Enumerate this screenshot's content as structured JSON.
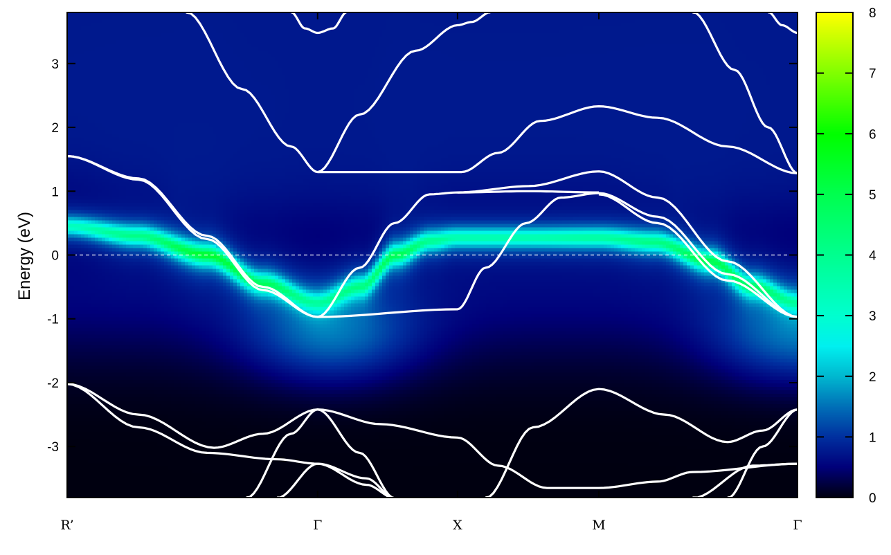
{
  "chart_data": {
    "type": "heatmap",
    "title": "",
    "xlabel": "",
    "ylabel": "Energy (eV)",
    "ylim": [
      -3.8,
      3.8
    ],
    "xlim": [
      0,
      5.22
    ],
    "yticks": [
      -3,
      -2,
      -1,
      0,
      1,
      2,
      3
    ],
    "xticks": [
      {
        "label": "R’",
        "k": 0
      },
      {
        "label": "Γ",
        "k": 1.79
      },
      {
        "label": "X",
        "k": 2.79
      },
      {
        "label": "M",
        "k": 3.8
      },
      {
        "label": "Γ",
        "k": 5.22
      }
    ],
    "fermi_level": 0,
    "colorbar": {
      "range": [
        0,
        8
      ],
      "ticks": [
        0,
        1,
        2,
        3,
        4,
        5,
        6,
        7,
        8
      ],
      "colormap": [
        [
          0,
          "#000010"
        ],
        [
          0.5,
          "#00007a"
        ],
        [
          1,
          "#0030a0"
        ],
        [
          1.5,
          "#0070b8"
        ],
        [
          2,
          "#00b8d0"
        ],
        [
          2.5,
          "#00f0f0"
        ],
        [
          3,
          "#00ffd0"
        ],
        [
          4,
          "#00ff90"
        ],
        [
          5,
          "#00ff50"
        ],
        [
          6,
          "#00ff00"
        ],
        [
          7,
          "#80ff00"
        ],
        [
          8,
          "#ffff00"
        ]
      ]
    },
    "spectral_peak": {
      "k": [
        0,
        0.5,
        1.0,
        1.4,
        1.79,
        2.1,
        2.35,
        2.6,
        2.79,
        3.3,
        3.8,
        4.2,
        4.6,
        4.9,
        5.22
      ],
      "E": [
        0.45,
        0.3,
        0.0,
        -0.45,
        -0.75,
        -0.5,
        0.0,
        0.22,
        0.27,
        0.27,
        0.27,
        0.2,
        -0.1,
        -0.5,
        -0.75
      ],
      "intensity": [
        3.0,
        3.8,
        5.0,
        4.2,
        2.8,
        3.5,
        4.5,
        3.6,
        3.2,
        3.2,
        3.4,
        3.8,
        4.6,
        4.0,
        2.8
      ]
    },
    "bands": [
      {
        "k": [
          0.85,
          1.25,
          1.6,
          1.79,
          2.82,
          3.08,
          3.38,
          3.8,
          4.22,
          4.72,
          5.22
        ],
        "E": [
          3.81,
          2.6,
          1.7,
          1.3,
          1.3,
          1.6,
          2.1,
          2.33,
          2.15,
          1.7,
          1.28
        ]
      },
      {
        "k": [
          1.79,
          2.09,
          2.49,
          2.79,
          2.89,
          3.03
        ],
        "E": [
          1.3,
          2.2,
          3.2,
          3.6,
          3.65,
          3.81
        ]
      },
      {
        "k": [
          1.6,
          1.7,
          1.79,
          1.9,
          2.0
        ],
        "E": [
          3.81,
          3.55,
          3.48,
          3.55,
          3.81
        ]
      },
      {
        "k": [
          4.47,
          4.77,
          5.01,
          5.22
        ],
        "E": [
          3.81,
          2.9,
          2.0,
          1.28
        ]
      },
      {
        "k": [
          5.01,
          5.11,
          5.22
        ],
        "E": [
          3.81,
          3.6,
          3.48
        ]
      },
      {
        "k": [
          0,
          0.51,
          1.0,
          1.4,
          1.79,
          2.79,
          2.99,
          3.28,
          3.53,
          3.8
        ],
        "E": [
          1.55,
          1.2,
          0.3,
          -0.5,
          -0.97,
          -0.85,
          -0.2,
          0.5,
          0.9,
          0.97
        ]
      },
      {
        "k": [
          0,
          0.51,
          1.0,
          1.4,
          1.79
        ],
        "E": [
          1.55,
          1.18,
          0.25,
          -0.55,
          -0.97
        ]
      },
      {
        "k": [
          1.79,
          2.09,
          2.34,
          2.59,
          2.79,
          3.3,
          3.8
        ],
        "E": [
          -0.97,
          -0.2,
          0.5,
          0.95,
          0.98,
          1.0,
          0.98
        ]
      },
      {
        "k": [
          2.79,
          3.3,
          3.8,
          4.22,
          4.72,
          5.22
        ],
        "E": [
          0.98,
          1.08,
          1.31,
          0.9,
          -0.1,
          -0.97
        ]
      },
      {
        "k": [
          3.8,
          4.22,
          4.72,
          5.22
        ],
        "E": [
          0.97,
          0.6,
          -0.3,
          -0.97
        ]
      },
      {
        "k": [
          3.8,
          4.22,
          4.72,
          5.22
        ],
        "E": [
          0.95,
          0.5,
          -0.4,
          -0.97
        ]
      },
      {
        "k": [
          0,
          0.51,
          1.05,
          1.4,
          1.79,
          2.24,
          2.79,
          3.08,
          3.43,
          3.8,
          4.22,
          4.47,
          5.22
        ],
        "E": [
          -2.02,
          -2.5,
          -3.02,
          -2.8,
          -2.42,
          -2.65,
          -2.86,
          -3.3,
          -3.65,
          -3.65,
          -3.55,
          -3.4,
          -3.27
        ]
      },
      {
        "k": [
          0,
          0.51,
          1.0,
          1.5,
          1.79,
          2.14,
          2.34
        ],
        "E": [
          -2.02,
          -2.7,
          -3.1,
          -3.2,
          -3.27,
          -3.6,
          -3.81
        ]
      },
      {
        "k": [
          1.5,
          1.79,
          2.14,
          2.34
        ],
        "E": [
          -3.81,
          -3.27,
          -3.5,
          -3.81
        ]
      },
      {
        "k": [
          1.28,
          1.6,
          1.79,
          2.09,
          2.34
        ],
        "E": [
          -3.81,
          -2.8,
          -2.42,
          -3.1,
          -3.81
        ]
      },
      {
        "k": [
          2.99,
          3.33,
          3.8,
          4.27,
          4.72,
          4.97,
          5.22
        ],
        "E": [
          -3.81,
          -2.7,
          -2.1,
          -2.5,
          -2.93,
          -2.75,
          -2.42
        ]
      },
      {
        "k": [
          4.72,
          4.97,
          5.22
        ],
        "E": [
          -3.81,
          -3.0,
          -2.42
        ]
      },
      {
        "k": [
          4.47,
          4.9,
          5.22
        ],
        "E": [
          -3.81,
          -3.3,
          -3.27
        ]
      }
    ]
  }
}
